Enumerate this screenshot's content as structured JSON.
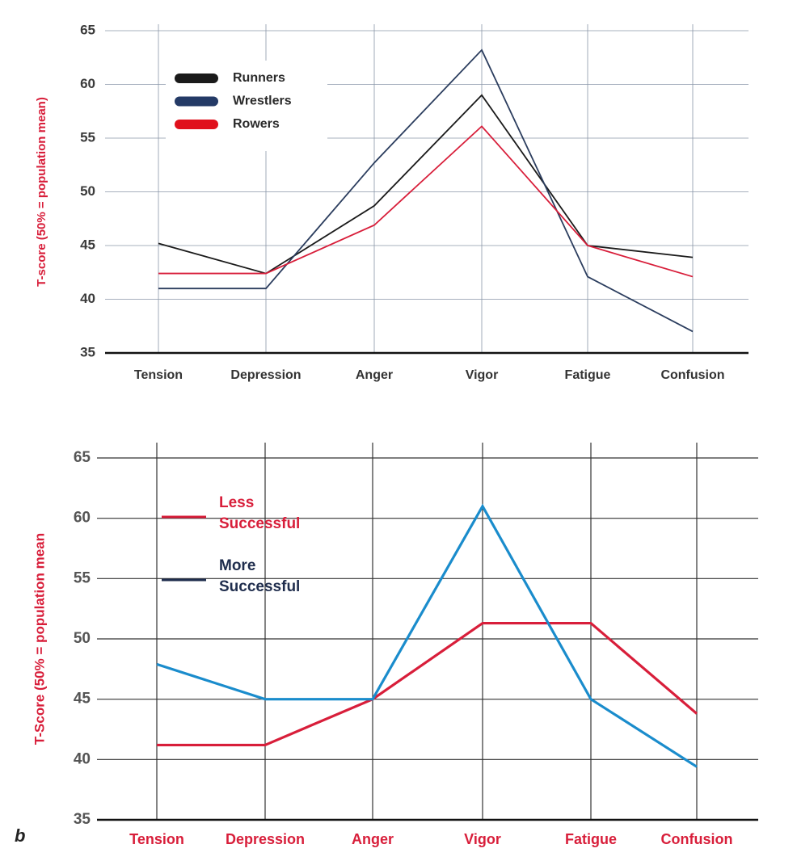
{
  "chart_data": [
    {
      "type": "line",
      "y_label": "T-score (50% = population mean)",
      "categories": [
        "Tension",
        "Depression",
        "Anger",
        "Vigor",
        "Fatigue",
        "Confusion"
      ],
      "series": [
        {
          "name": "Runners",
          "color": "#1a1a1a",
          "legend_color": "#1a1a1a",
          "values": [
            45.2,
            42.4,
            48.7,
            59.0,
            45.0,
            43.9
          ]
        },
        {
          "name": "Wrestlers",
          "color": "#2b3d5e",
          "legend_color": "#243a66",
          "values": [
            41.0,
            41.0,
            52.7,
            63.2,
            42.1,
            37.0
          ]
        },
        {
          "name": "Rowers",
          "color": "#d81e3a",
          "legend_color": "#e0101c",
          "values": [
            42.4,
            42.4,
            46.9,
            56.1,
            45.0,
            42.1
          ]
        }
      ],
      "ylim": [
        35,
        65
      ],
      "yticks": [
        35,
        40,
        45,
        50,
        55,
        60,
        65
      ],
      "grid": true
    },
    {
      "type": "line",
      "y_label": "T-Score (50% = population mean",
      "panel_label": "b",
      "categories": [
        "Tension",
        "Depression",
        "Anger",
        "Vigor",
        "Fatigue",
        "Confusion"
      ],
      "series": [
        {
          "name": "Less Successful",
          "color": "#d81e3a",
          "legend_color": "#d81e3a",
          "values": [
            41.2,
            41.2,
            45.0,
            51.3,
            51.3,
            43.8
          ]
        },
        {
          "name": "More Successful",
          "color": "#1a8ccc",
          "legend_color": "#1f2d4d",
          "values": [
            47.9,
            45.0,
            45.0,
            61.0,
            45.0,
            39.4
          ]
        }
      ],
      "ylim": [
        35,
        65
      ],
      "yticks": [
        35,
        40,
        45,
        50,
        55,
        60,
        65
      ],
      "grid": true
    }
  ]
}
